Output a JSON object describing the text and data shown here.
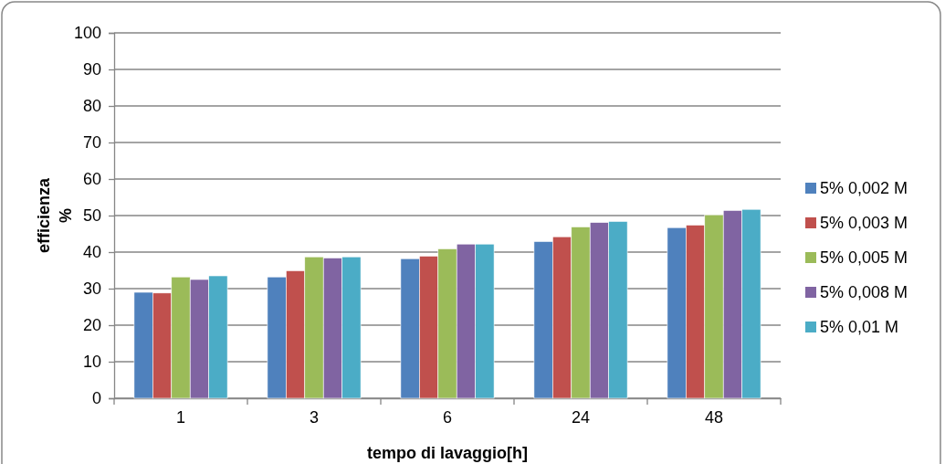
{
  "chart_data": {
    "type": "bar",
    "xlabel": "tempo di lavaggio[h]",
    "ylabel": "efficienza\n%",
    "categories": [
      "1",
      "3",
      "6",
      "24",
      "48"
    ],
    "series": [
      {
        "name": "5% 0,002 M",
        "color": "#4f81bd",
        "values": [
          29,
          33.2,
          38.2,
          42.9,
          46.7
        ]
      },
      {
        "name": "5% 0,003 M",
        "color": "#c0504d",
        "values": [
          28.8,
          34.9,
          38.9,
          44.2,
          47.4
        ]
      },
      {
        "name": "5% 0,005 M",
        "color": "#9bbb59",
        "values": [
          33.2,
          38.7,
          40.9,
          46.9,
          50.2
        ]
      },
      {
        "name": "5% 0,008 M",
        "color": "#8064a2",
        "values": [
          32.5,
          38.4,
          42.2,
          48.1,
          51.4
        ]
      },
      {
        "name": "5% 0,01 M",
        "color": "#4bacc6",
        "values": [
          33.5,
          38.7,
          42.2,
          48.4,
          51.7
        ]
      }
    ],
    "ylim": [
      0,
      100
    ],
    "yticks": [
      0,
      10,
      20,
      30,
      40,
      50,
      60,
      70,
      80,
      90,
      100
    ],
    "grid": "y",
    "legend": "right"
  }
}
